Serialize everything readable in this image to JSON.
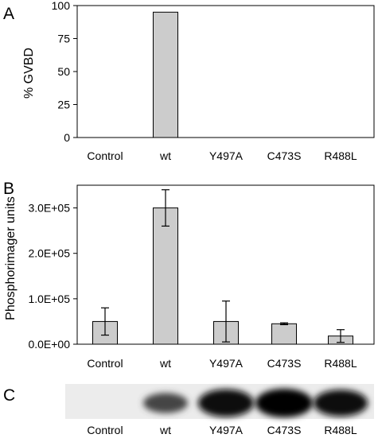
{
  "panels": {
    "a": {
      "letter": "A"
    },
    "b": {
      "letter": "B"
    },
    "c": {
      "letter": "C"
    }
  },
  "chart_data": [
    {
      "type": "bar",
      "panel": "A",
      "categories": [
        "Control",
        "wt",
        "Y497A",
        "C473S",
        "R488L"
      ],
      "values": [
        0,
        95,
        0,
        0,
        0
      ],
      "ylabel": "% GVBD",
      "ylim": [
        0,
        100
      ],
      "yticks": [
        "0",
        "25",
        "50",
        "75",
        "100"
      ],
      "ytick_values": [
        0,
        25,
        50,
        75,
        100
      ],
      "grid": false,
      "bar_color": "#cccccc"
    },
    {
      "type": "bar",
      "panel": "B",
      "categories": [
        "Control",
        "wt",
        "Y497A",
        "C473S",
        "R488L"
      ],
      "values": [
        50000,
        300000,
        50000,
        45000,
        18000
      ],
      "errors": [
        30000,
        40000,
        45000,
        2000,
        14000
      ],
      "ylabel": "Phosphorimager units",
      "ylim": [
        0,
        350000
      ],
      "yticks": [
        "0.0E+00",
        "1.0E+05",
        "2.0E+05",
        "3.0E+05"
      ],
      "ytick_values": [
        0,
        100000,
        200000,
        300000
      ],
      "grid": false,
      "bar_color": "#cccccc"
    }
  ],
  "blot": {
    "lanes": [
      "Control",
      "wt",
      "Y497A",
      "C473S",
      "R488L"
    ],
    "intensities": [
      0.0,
      0.55,
      0.95,
      1.0,
      0.9
    ]
  }
}
